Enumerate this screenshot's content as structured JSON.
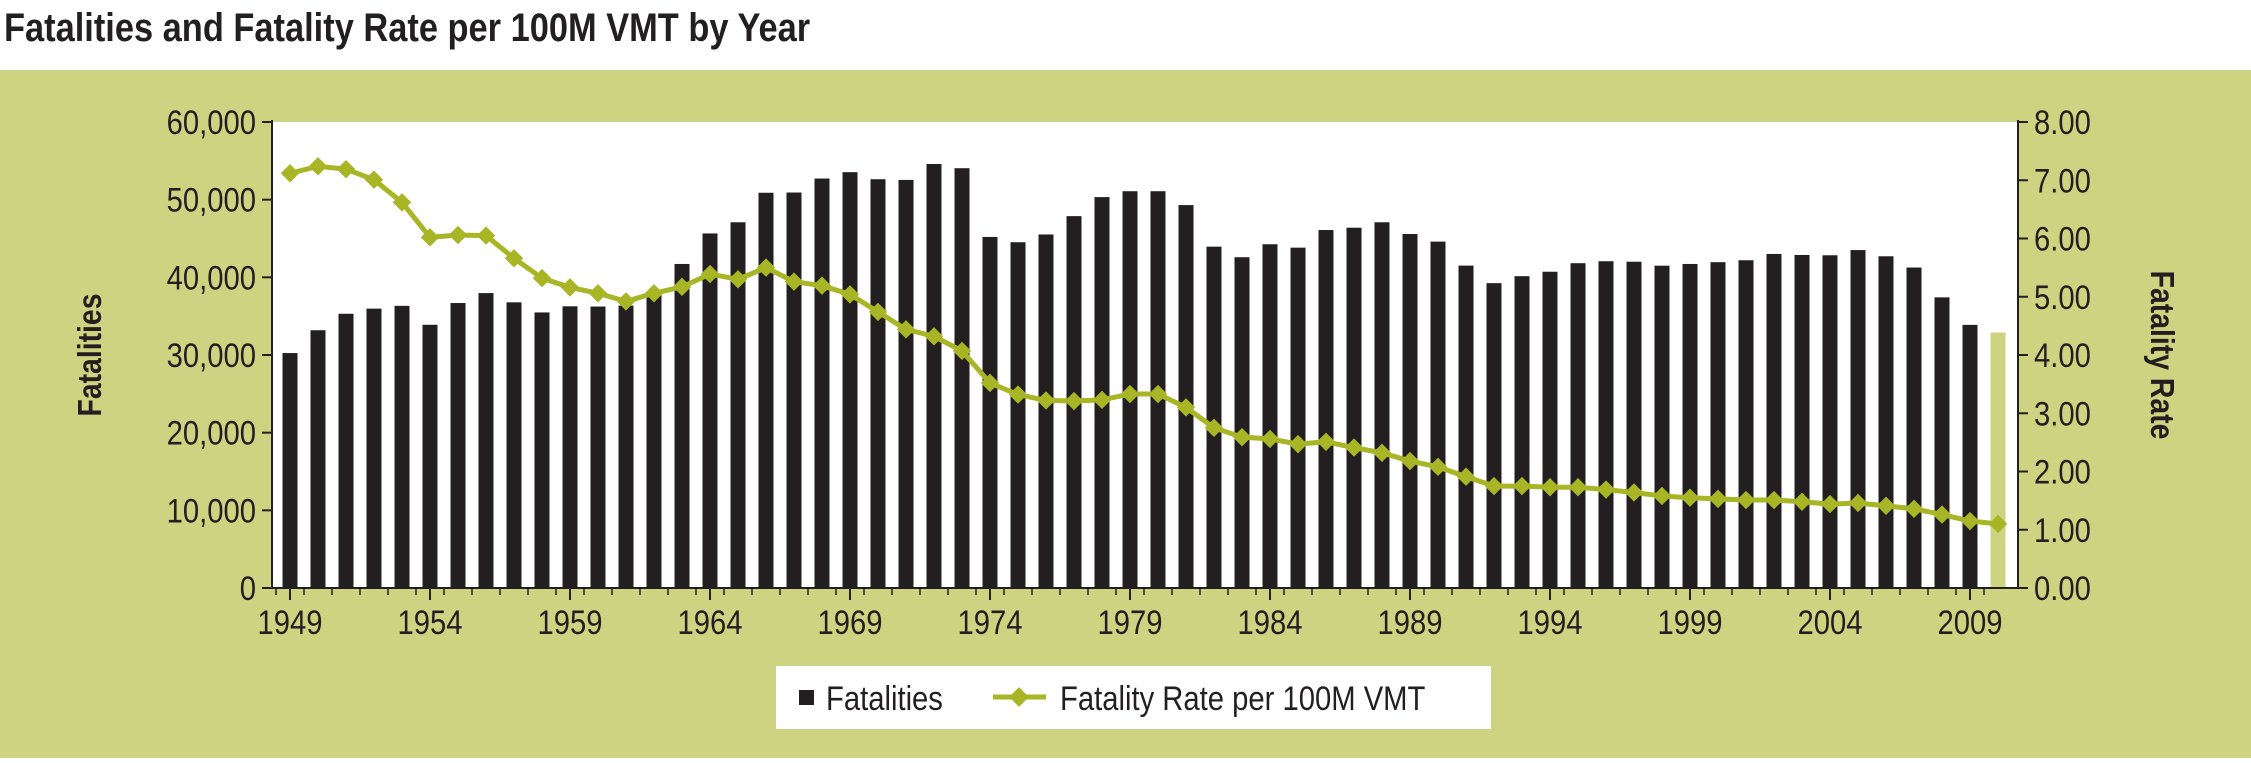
{
  "title": "Fatalities and Fatality Rate per 100M VMT by Year",
  "colors": {
    "panel_bg": "#cdd381",
    "plot_bg": "#ffffff",
    "bar": "#231f20",
    "bar_last": "#cdd381",
    "line": "#a8b525",
    "text": "#231f20"
  },
  "chart_data": {
    "type": "bar",
    "title": "Fatalities and Fatality Rate per 100M VMT by Year",
    "xlabel": "",
    "ylabel": "Fatalities",
    "y2label": "Fatality Rate",
    "ylim": [
      0,
      60000
    ],
    "y2lim": [
      0,
      8
    ],
    "xlim": [
      1949,
      2010
    ],
    "x_ticks": [
      "1949",
      "1954",
      "1959",
      "1964",
      "1969",
      "1974",
      "1979",
      "1984",
      "1989",
      "1994",
      "1999",
      "2004",
      "2009"
    ],
    "y_ticks": [
      "0",
      "10,000",
      "20,000",
      "30,000",
      "40,000",
      "50,000",
      "60,000"
    ],
    "y2_ticks": [
      "0.00",
      "1.00",
      "2.00",
      "3.00",
      "4.00",
      "5.00",
      "6.00",
      "7.00",
      "8.00"
    ],
    "grid": false,
    "legend_position": "bottom",
    "categories": [
      1949,
      1950,
      1951,
      1952,
      1953,
      1954,
      1955,
      1956,
      1957,
      1958,
      1959,
      1960,
      1961,
      1962,
      1963,
      1964,
      1965,
      1966,
      1967,
      1968,
      1969,
      1970,
      1971,
      1972,
      1973,
      1974,
      1975,
      1976,
      1977,
      1978,
      1979,
      1980,
      1981,
      1982,
      1983,
      1984,
      1985,
      1986,
      1987,
      1988,
      1989,
      1990,
      1991,
      1992,
      1993,
      1994,
      1995,
      1996,
      1997,
      1998,
      1999,
      2000,
      2001,
      2002,
      2003,
      2004,
      2005,
      2006,
      2007,
      2008,
      2009,
      2010
    ],
    "series": [
      {
        "name": "Fatalities",
        "type": "bar",
        "axis": "left",
        "values": [
          30250,
          33190,
          35310,
          35970,
          36330,
          33890,
          36690,
          37970,
          36780,
          35480,
          36270,
          36240,
          36360,
          37890,
          41720,
          45650,
          47090,
          50890,
          50920,
          52720,
          53540,
          52630,
          52540,
          54590,
          54050,
          45200,
          44520,
          45520,
          47880,
          50330,
          51090,
          51090,
          49300,
          43950,
          42590,
          44260,
          43820,
          46090,
          46390,
          47090,
          45580,
          44600,
          41510,
          39250,
          40150,
          40720,
          41820,
          42070,
          42010,
          41500,
          41720,
          41950,
          42200,
          43010,
          42880,
          42840,
          43510,
          42710,
          41260,
          37420,
          33880,
          32890
        ]
      },
      {
        "name": "Fatality Rate per 100M VMT",
        "type": "line",
        "axis": "right",
        "values": [
          7.12,
          7.24,
          7.19,
          7.01,
          6.62,
          6.02,
          6.06,
          6.05,
          5.66,
          5.32,
          5.16,
          5.06,
          4.92,
          5.06,
          5.17,
          5.39,
          5.3,
          5.5,
          5.26,
          5.19,
          5.04,
          4.74,
          4.44,
          4.32,
          4.07,
          3.52,
          3.32,
          3.22,
          3.21,
          3.23,
          3.33,
          3.33,
          3.1,
          2.75,
          2.59,
          2.56,
          2.47,
          2.51,
          2.41,
          2.32,
          2.18,
          2.08,
          1.91,
          1.75,
          1.75,
          1.73,
          1.73,
          1.69,
          1.64,
          1.58,
          1.55,
          1.53,
          1.51,
          1.51,
          1.48,
          1.44,
          1.46,
          1.41,
          1.36,
          1.26,
          1.15,
          1.1
        ]
      }
    ]
  },
  "legend": {
    "bar_label": "Fatalities",
    "line_label": "Fatality Rate per 100M VMT"
  }
}
